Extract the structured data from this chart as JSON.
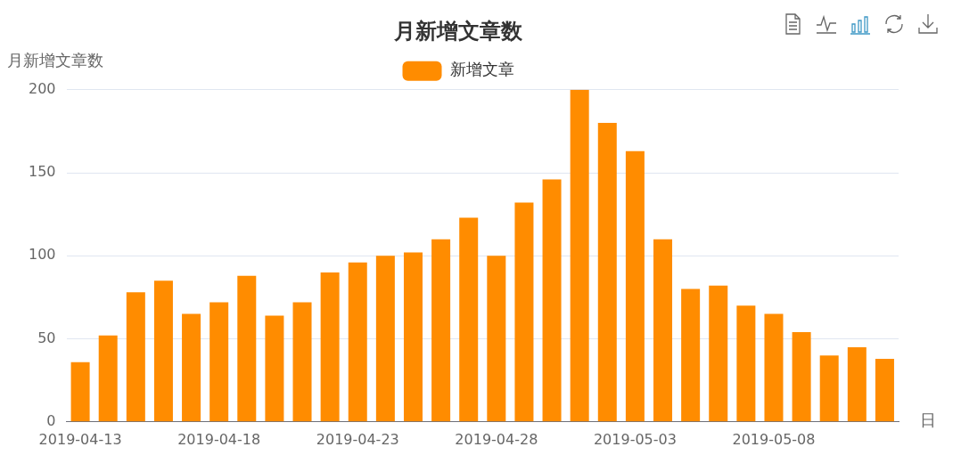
{
  "chart_data": {
    "type": "bar",
    "title": "月新增文章数",
    "ylabel": "月新增文章数",
    "xlabel": "日",
    "categories": [
      "2019-04-13",
      null,
      null,
      null,
      null,
      "2019-04-18",
      null,
      null,
      null,
      null,
      "2019-04-23",
      null,
      null,
      null,
      null,
      "2019-04-28",
      null,
      null,
      null,
      null,
      "2019-05-03",
      null,
      null,
      null,
      null,
      "2019-05-08",
      null,
      null,
      null,
      null
    ],
    "series": [
      {
        "name": "新增文章",
        "color": "#ff8c00",
        "values": [
          36,
          52,
          78,
          85,
          65,
          72,
          88,
          64,
          72,
          90,
          96,
          100,
          102,
          110,
          123,
          100,
          132,
          146,
          200,
          180,
          163,
          110,
          80,
          82,
          70,
          65,
          54,
          40,
          45,
          38
        ]
      }
    ],
    "ylim": [
      0,
      200
    ],
    "yticks": [
      0,
      50,
      100,
      150,
      200
    ],
    "grid": "y",
    "legend": "top"
  }
}
